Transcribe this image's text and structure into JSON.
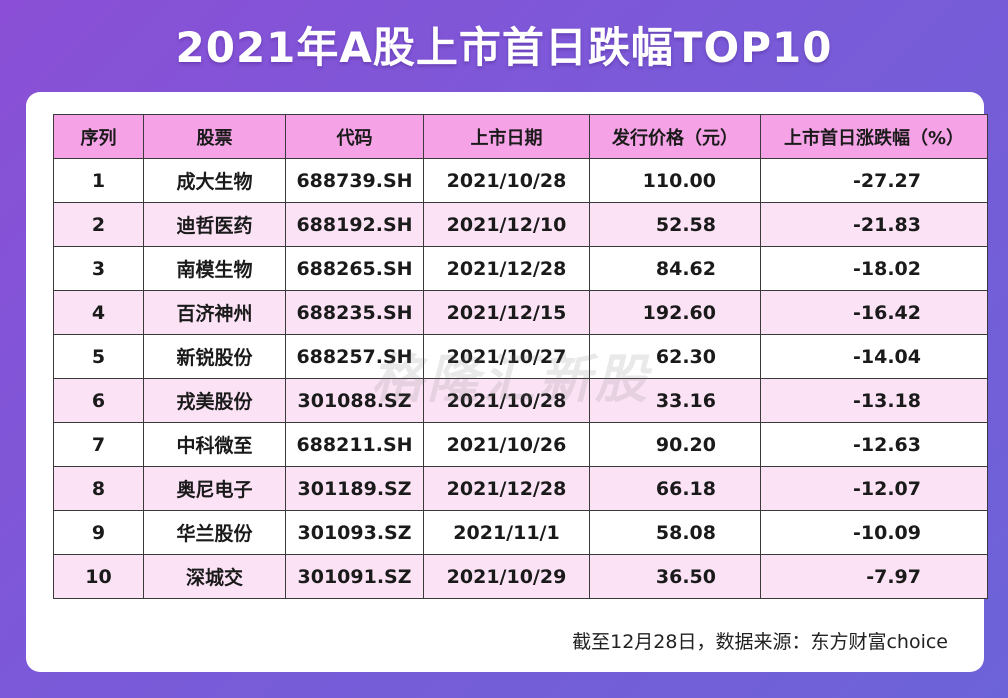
{
  "title": "2021年A股上市首日跌幅TOP10",
  "table": {
    "headers": [
      "序列",
      "股票",
      "代码",
      "上市日期",
      "发行价格（元）",
      "上市首日涨跌幅（%）"
    ],
    "rows": [
      [
        "1",
        "成大生物",
        "688739.SH",
        "2021/10/28",
        "110.00",
        "-27.27"
      ],
      [
        "2",
        "迪哲医药",
        "688192.SH",
        "2021/12/10",
        "52.58",
        "-21.83"
      ],
      [
        "3",
        "南模生物",
        "688265.SH",
        "2021/12/28",
        "84.62",
        "-18.02"
      ],
      [
        "4",
        "百济神州",
        "688235.SH",
        "2021/12/15",
        "192.60",
        "-16.42"
      ],
      [
        "5",
        "新锐股份",
        "688257.SH",
        "2021/10/27",
        "62.30",
        "-14.04"
      ],
      [
        "6",
        "戎美股份",
        "301088.SZ",
        "2021/10/28",
        "33.16",
        "-13.18"
      ],
      [
        "7",
        "中科微至",
        "688211.SH",
        "2021/10/26",
        "90.20",
        "-12.63"
      ],
      [
        "8",
        "奥尼电子",
        "301189.SZ",
        "2021/12/28",
        "66.18",
        "-12.07"
      ],
      [
        "9",
        "华兰股份",
        "301093.SZ",
        "2021/11/1",
        "58.08",
        "-10.09"
      ],
      [
        "10",
        "深城交",
        "301091.SZ",
        "2021/10/29",
        "36.50",
        "-7.97"
      ]
    ]
  },
  "watermark": "格隆汇新股",
  "source": "截至12月28日，数据来源：东方财富choice",
  "colors": {
    "background": "#7a5ad8",
    "header_row": "#f5a3e6",
    "alt_row": "#fbe3f5"
  }
}
